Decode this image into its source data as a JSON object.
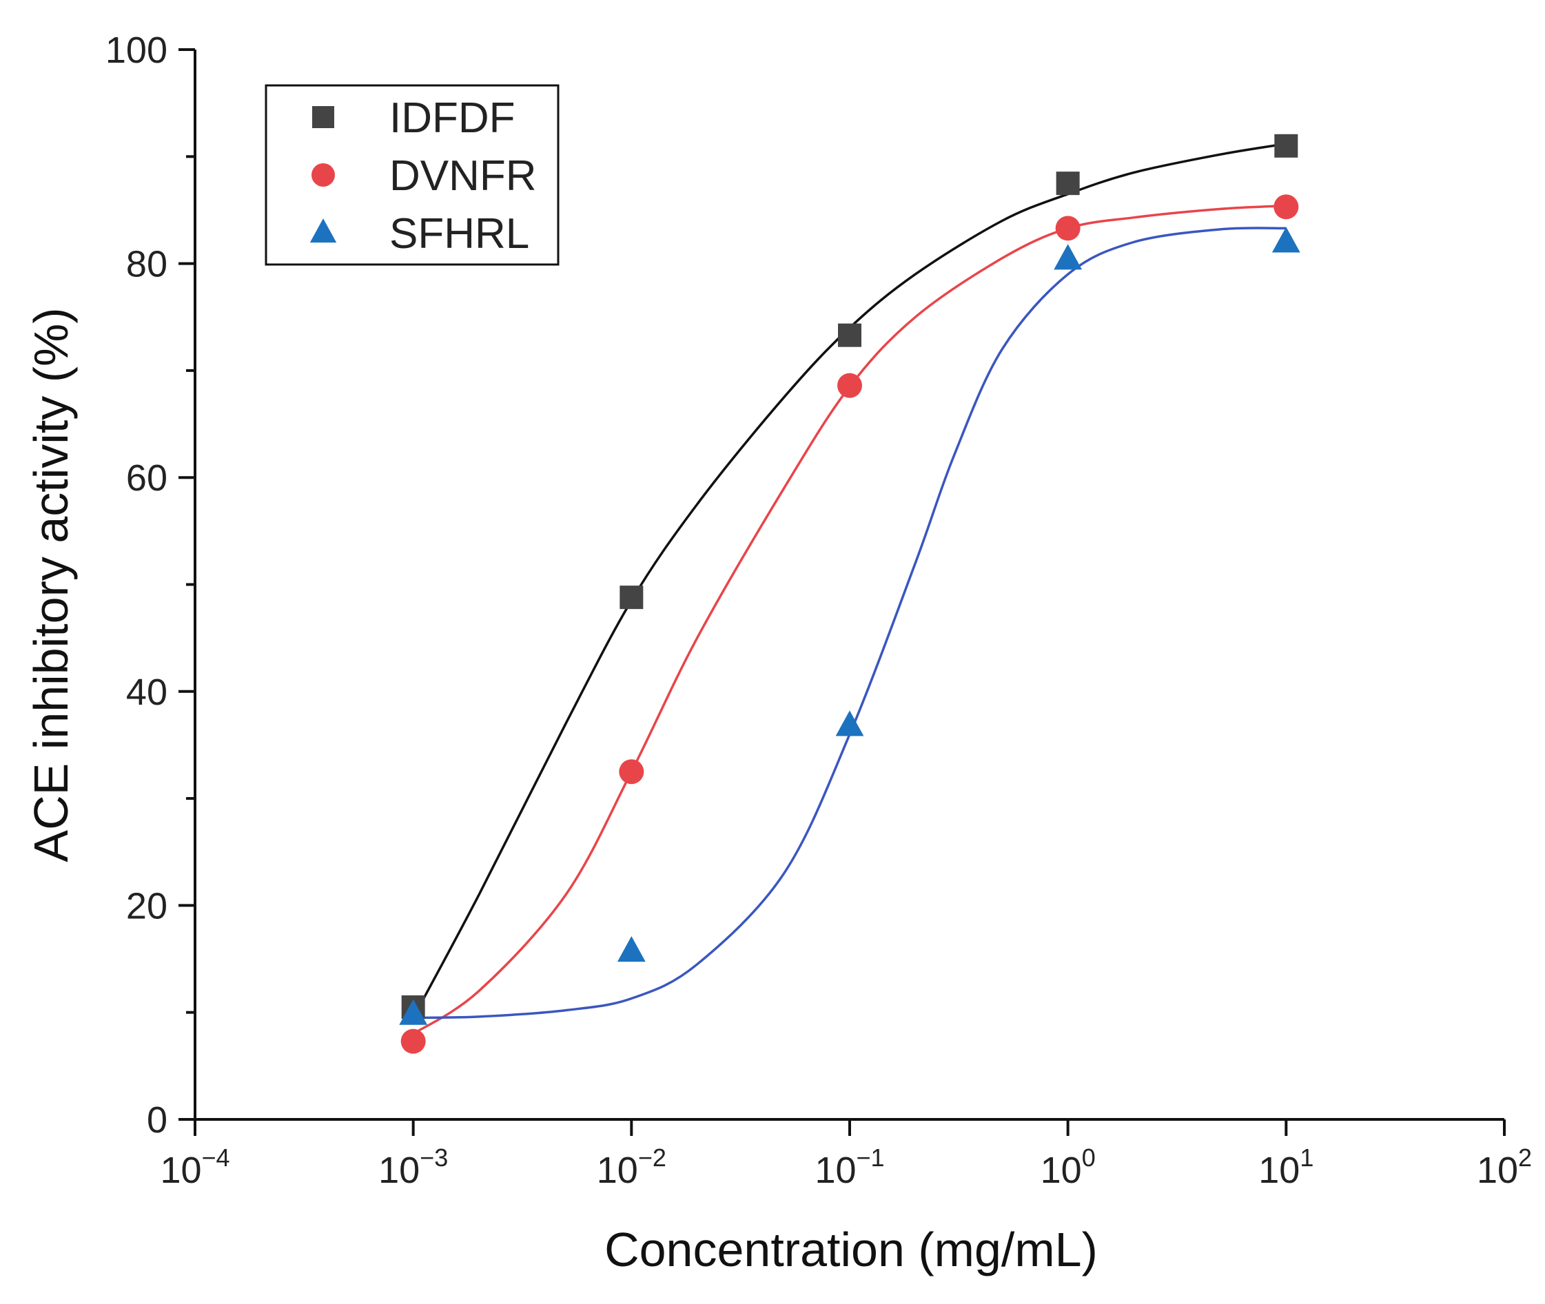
{
  "chart_data": {
    "type": "scatter",
    "xlabel": "Concentration (mg/mL)",
    "ylabel": "ACE inhibitory activity (%)",
    "x_scale": "log",
    "xlim": [
      0.0001,
      100
    ],
    "ylim": [
      0,
      100
    ],
    "x_ticks": [
      {
        "base": "10",
        "exp": "−4",
        "value": 0.0001
      },
      {
        "base": "10",
        "exp": "−3",
        "value": 0.001
      },
      {
        "base": "10",
        "exp": "−2",
        "value": 0.01
      },
      {
        "base": "10",
        "exp": "−1",
        "value": 0.1
      },
      {
        "base": "10",
        "exp": "0",
        "value": 1
      },
      {
        "base": "10",
        "exp": "1",
        "value": 10
      },
      {
        "base": "10",
        "exp": "2",
        "value": 100
      }
    ],
    "y_ticks": [
      0,
      20,
      40,
      60,
      80,
      100
    ],
    "grid": false,
    "legend_position": "top-left",
    "series": [
      {
        "name": "IDFDF",
        "marker": "square",
        "color": "#444444",
        "line_color": "#111111",
        "x": [
          0.001,
          0.01,
          0.1,
          1,
          10
        ],
        "y": [
          10.5,
          48.8,
          73.3,
          87.5,
          91.0
        ],
        "fit": [
          [
            0.001,
            9.5
          ],
          [
            0.002,
            21
          ],
          [
            0.005,
            37
          ],
          [
            0.01,
            48.5
          ],
          [
            0.02,
            57.5
          ],
          [
            0.05,
            67.5
          ],
          [
            0.1,
            74
          ],
          [
            0.2,
            79
          ],
          [
            0.5,
            84
          ],
          [
            1,
            86.5
          ],
          [
            2,
            88.5
          ],
          [
            5,
            90.2
          ],
          [
            10,
            91.2
          ]
        ]
      },
      {
        "name": "DVNFR",
        "marker": "circle",
        "color": "#e8454a",
        "line_color": "#e8454a",
        "x": [
          0.001,
          0.01,
          0.1,
          1,
          10
        ],
        "y": [
          7.3,
          32.5,
          68.6,
          83.3,
          85.3
        ],
        "fit": [
          [
            0.001,
            8
          ],
          [
            0.002,
            12
          ],
          [
            0.005,
            21
          ],
          [
            0.01,
            32.5
          ],
          [
            0.02,
            45
          ],
          [
            0.05,
            59
          ],
          [
            0.1,
            68.5
          ],
          [
            0.2,
            75
          ],
          [
            0.5,
            80.5
          ],
          [
            1,
            83.3
          ],
          [
            2,
            84.3
          ],
          [
            5,
            85.1
          ],
          [
            10,
            85.4
          ]
        ]
      },
      {
        "name": "SFHRL",
        "marker": "triangle",
        "color": "#1c72bf",
        "line_color": "#3a56c0",
        "x": [
          0.001,
          0.01,
          0.1,
          1,
          10
        ],
        "y": [
          9.8,
          15.7,
          36.8,
          80.4,
          82.0
        ],
        "fit": [
          [
            0.001,
            9.5
          ],
          [
            0.002,
            9.6
          ],
          [
            0.005,
            10.2
          ],
          [
            0.01,
            11.3
          ],
          [
            0.02,
            14.5
          ],
          [
            0.05,
            23
          ],
          [
            0.1,
            36
          ],
          [
            0.2,
            52
          ],
          [
            0.3,
            62
          ],
          [
            0.5,
            72
          ],
          [
            1,
            79
          ],
          [
            2,
            82
          ],
          [
            5,
            83.2
          ],
          [
            10,
            83.3
          ]
        ]
      }
    ]
  }
}
